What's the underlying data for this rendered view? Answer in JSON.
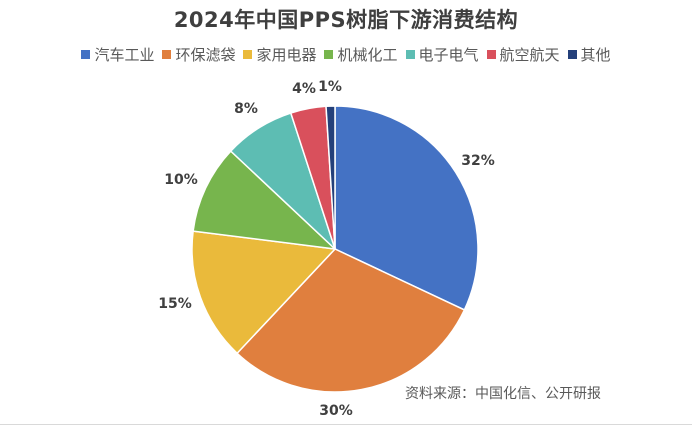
{
  "chart_data": {
    "type": "pie",
    "title": "2024年中国PPS树脂下游消费结构",
    "categories": [
      "汽车工业",
      "环保滤袋",
      "家用电器",
      "机械化工",
      "电子电气",
      "航空航天",
      "其他"
    ],
    "values": [
      32,
      30,
      15,
      10,
      8,
      4,
      1
    ],
    "unit": "%",
    "colors": [
      "#4472C4",
      "#E07F3E",
      "#EABA3B",
      "#77B54D",
      "#5DBDB3",
      "#D9505C",
      "#24407A"
    ],
    "data_labels": [
      "32%",
      "30%",
      "15%",
      "10%",
      "8%",
      "4%",
      "1%"
    ],
    "legend_position": "top",
    "start_angle_deg": 0,
    "direction": "clockwise"
  },
  "title": "2024年中国PPS树脂下游消费结构",
  "legend": [
    {
      "label": "汽车工业",
      "color": "#4472C4"
    },
    {
      "label": "环保滤袋",
      "color": "#E07F3E"
    },
    {
      "label": "家用电器",
      "color": "#EABA3B"
    },
    {
      "label": "机械化工",
      "color": "#77B54D"
    },
    {
      "label": "电子电气",
      "color": "#5DBDB3"
    },
    {
      "label": "航空航天",
      "color": "#D9505C"
    },
    {
      "label": "其他",
      "color": "#24407A"
    }
  ],
  "source": "资料来源：中国化信、公开研报"
}
